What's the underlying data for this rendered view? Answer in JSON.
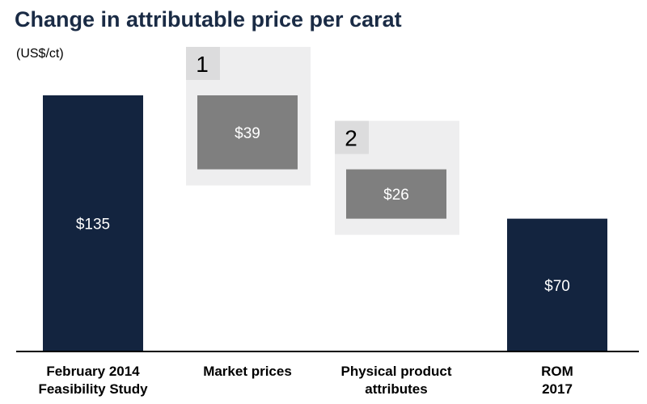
{
  "chart_data": {
    "type": "bar",
    "subtype": "waterfall",
    "title": "Change in attributable price per carat",
    "unit_label": "(US$/ct)",
    "categories": [
      [
        "February 2014",
        "Feasibility Study"
      ],
      [
        "Market prices"
      ],
      [
        "Physical product",
        "attributes"
      ],
      [
        "ROM",
        "2017"
      ]
    ],
    "steps": [
      {
        "kind": "total",
        "value": 135,
        "label": "$135"
      },
      {
        "kind": "decrease",
        "value": 39,
        "label": "$39",
        "marker": "1"
      },
      {
        "kind": "decrease",
        "value": 26,
        "label": "$26",
        "marker": "2"
      },
      {
        "kind": "total",
        "value": 70,
        "label": "$70"
      }
    ],
    "ylim": [
      0,
      135
    ],
    "grid": false,
    "legend": "none"
  },
  "colors": {
    "title": "#1a2b45",
    "total_bar": "#13243f",
    "change_bar": "#7f7f7f",
    "panel": "#eeeeef",
    "marker_box": "#dcdcdd",
    "bar_label": "#ffffff",
    "axis": "#000000",
    "text": "#000000"
  }
}
